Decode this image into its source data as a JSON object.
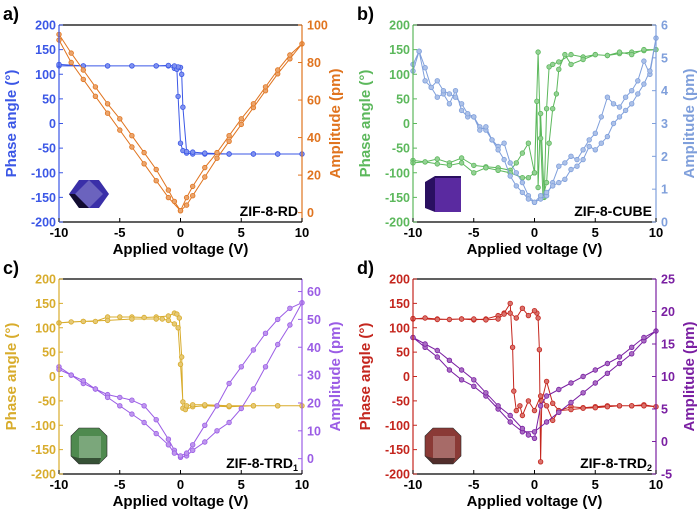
{
  "chart_data": [
    {
      "type": "scatter",
      "panel_label": "a)",
      "sample_label": "ZIF-8-RD",
      "sample_subscript": "",
      "xlabel": "Applied voltage (V)",
      "ylabel_left": "Phase angle (°)",
      "ylabel_right": "Amplitude (pm)",
      "xlim": [
        -10,
        10
      ],
      "ylim_left": [
        -200,
        200
      ],
      "ylim_right": [
        -5,
        100
      ],
      "xticks": [
        -10,
        -5,
        0,
        5,
        10
      ],
      "yticks_left": [
        -200,
        -150,
        -100,
        -50,
        0,
        50,
        100,
        150,
        200
      ],
      "yticks_right": [
        0,
        20,
        40,
        60,
        80,
        100
      ],
      "left_color": "#3b57e6",
      "right_color": "#e0741f",
      "crystal_color": "#3a2fa8",
      "series": [
        {
          "axis": "left",
          "x": [
            -10,
            -8,
            -6,
            -4,
            -2,
            -1,
            -0.5,
            -0.3,
            -0.2,
            0,
            0.2,
            0.5,
            1,
            2,
            4,
            6,
            8,
            10,
            8,
            6,
            4,
            2,
            1,
            0.5,
            0.2,
            0.1,
            0,
            -0.2,
            -0.5,
            -1,
            -2,
            -4,
            -6,
            -8,
            -10
          ],
          "y": [
            117,
            117,
            117,
            117,
            117,
            117,
            112,
            110,
            55,
            -40,
            -55,
            -60,
            -62,
            -62,
            -62,
            -62,
            -62,
            -62,
            -62,
            -62,
            -62,
            -60,
            -58,
            -57,
            33,
            100,
            114,
            115,
            117,
            118,
            117,
            117,
            117,
            117,
            120
          ]
        },
        {
          "axis": "right",
          "x": [
            -10,
            -9,
            -8,
            -7,
            -6,
            -5,
            -4,
            -3,
            -2,
            -1,
            -0.5,
            0,
            0.5,
            1,
            2,
            3,
            4,
            5,
            6,
            7,
            8,
            9,
            10,
            9,
            8,
            7,
            6,
            5,
            4,
            3,
            2,
            1,
            0.5,
            0,
            -1,
            -2,
            -3,
            -4,
            -5,
            -6,
            -7,
            -8,
            -9,
            -10
          ],
          "y": [
            95,
            85,
            76,
            67,
            58,
            50,
            41,
            32,
            23,
            12,
            6,
            1,
            4,
            9,
            19,
            29,
            38,
            47,
            56,
            65,
            74,
            82,
            90,
            84,
            76,
            67,
            58,
            50,
            41,
            32,
            24,
            14,
            8,
            1,
            8,
            17,
            26,
            35,
            44,
            53,
            62,
            71,
            80,
            92
          ]
        }
      ]
    },
    {
      "type": "scatter",
      "panel_label": "b)",
      "sample_label": "ZIF-8-CUBE",
      "sample_subscript": "",
      "xlabel": "Applied voltage (V)",
      "ylabel_left": "Phase angle (°)",
      "ylabel_right": "Amplitude (pm)",
      "xlim": [
        -10,
        10
      ],
      "ylim_left": [
        -200,
        200
      ],
      "ylim_right": [
        0,
        6
      ],
      "xticks": [
        -10,
        -5,
        0,
        5,
        10
      ],
      "yticks_left": [
        -200,
        -150,
        -100,
        -50,
        0,
        50,
        100,
        150,
        200
      ],
      "yticks_right": [
        0,
        1,
        2,
        3,
        4,
        5,
        6
      ],
      "left_color": "#5cb85c",
      "right_color": "#7f9fdb",
      "crystal_color": "#5a2aa0",
      "series": [
        {
          "axis": "left",
          "x": [
            -10,
            -9,
            -8,
            -7,
            -6,
            -5,
            -4,
            -3,
            -2,
            -1.5,
            -1,
            -0.5,
            0,
            0.2,
            0.3,
            0.5,
            0.8,
            1,
            1.2,
            1.5,
            2,
            3,
            4,
            5,
            6,
            7,
            8,
            9,
            10,
            9,
            8,
            7,
            6,
            5,
            4,
            3,
            2.5,
            2,
            1.8,
            1.5,
            1.2,
            1,
            0.7,
            0.5,
            0.3,
            0,
            -0.5,
            -1,
            -2,
            -3,
            -4,
            -5,
            -6,
            -7,
            -8,
            -9,
            -10
          ],
          "y": [
            -75,
            -78,
            -72,
            -80,
            -70,
            -85,
            -88,
            -90,
            -95,
            -80,
            -60,
            -40,
            -100,
            45,
            -130,
            20,
            -150,
            30,
            115,
            120,
            125,
            140,
            135,
            140,
            138,
            142,
            145,
            148,
            150,
            150,
            140,
            145,
            138,
            140,
            130,
            120,
            140,
            110,
            60,
            30,
            -40,
            -120,
            -150,
            -30,
            145,
            -100,
            -110,
            -110,
            -100,
            -95,
            -90,
            -100,
            -80,
            -85,
            -82,
            -78,
            -80
          ]
        },
        {
          "axis": "right",
          "x": [
            -10,
            -9.5,
            -9,
            -8.5,
            -8,
            -7.5,
            -7,
            -6.5,
            -6,
            -5.5,
            -5,
            -4.5,
            -4,
            -3.5,
            -3,
            -2.5,
            -2,
            -1.5,
            -1,
            -0.5,
            0,
            0.5,
            1,
            1.5,
            2,
            2.5,
            3,
            3.5,
            4,
            4.5,
            5,
            5.5,
            6,
            6.5,
            7,
            7.5,
            8,
            8.5,
            9,
            9.5,
            10,
            9.5,
            9,
            8.5,
            8,
            7.5,
            7,
            6.5,
            6,
            5.5,
            5,
            4.5,
            4,
            3.5,
            3,
            2.5,
            2,
            1.5,
            1,
            0.5,
            0,
            -0.5,
            -1,
            -1.5,
            -2,
            -2.5,
            -3,
            -3.5,
            -4,
            -4.5,
            -5,
            -5.5,
            -6,
            -6.5,
            -7,
            -7.5,
            -8,
            -8.5,
            -9,
            -9.5,
            -10
          ],
          "y": [
            4.6,
            5.2,
            4.3,
            4.1,
            3.8,
            3.9,
            3.6,
            4.0,
            3.4,
            3.2,
            3.2,
            2.9,
            2.8,
            2.5,
            2.3,
            2.4,
            1.8,
            1.5,
            1.2,
            0.8,
            0.6,
            0.7,
            0.8,
            1.2,
            1.7,
            1.8,
            2.0,
            1.9,
            2.2,
            2.5,
            2.7,
            3.2,
            3.8,
            3.6,
            3.5,
            3.8,
            4.0,
            4.3,
            4.9,
            4.5,
            5.6,
            4.6,
            4.2,
            3.9,
            3.6,
            3.4,
            3.2,
            3.0,
            2.6,
            2.4,
            2.2,
            2.3,
            1.9,
            1.7,
            1.6,
            1.3,
            1.2,
            1.1,
            0.9,
            0.8,
            0.6,
            0.7,
            0.9,
            1.1,
            1.4,
            1.9,
            2.2,
            2.5,
            2.9,
            2.8,
            3.2,
            3.3,
            3.6,
            3.8,
            3.9,
            4.0,
            4.3,
            4.1,
            4.7,
            5.2,
            4.8
          ]
        }
      ]
    },
    {
      "type": "scatter",
      "panel_label": "c)",
      "sample_label": "ZIF-8-TRD",
      "sample_subscript": "1",
      "xlabel": "Applied voltage (V)",
      "ylabel_left": "Phase angle (°)",
      "ylabel_right": "Amplitude (pm)",
      "xlim": [
        -10,
        10
      ],
      "ylim_left": [
        -200,
        200
      ],
      "ylim_right": [
        -5.5,
        64.5
      ],
      "xticks": [
        -10,
        -5,
        0,
        5,
        10
      ],
      "yticks_left": [
        -200,
        -150,
        -100,
        -50,
        0,
        50,
        100,
        150,
        200
      ],
      "yticks_right": [
        0,
        10,
        20,
        30,
        40,
        50,
        60
      ],
      "left_color": "#d8ac2c",
      "right_color": "#9b5de5",
      "crystal_color": "#4f8a4f",
      "series": [
        {
          "axis": "left",
          "x": [
            -10,
            -9,
            -8,
            -7,
            -6,
            -5,
            -4,
            -3,
            -2,
            -1,
            -0.5,
            -0.3,
            -0.1,
            0.1,
            0.2,
            0.4,
            1,
            2,
            4,
            6,
            8,
            10,
            8,
            6,
            4,
            2,
            1,
            0.5,
            0.2,
            0,
            -0.2,
            -0.5,
            -1,
            -1.5,
            -2,
            -4,
            -6,
            -8,
            -10
          ],
          "y": [
            110,
            112,
            113,
            113,
            122,
            122,
            122,
            121,
            122,
            124,
            130,
            128,
            120,
            40,
            -65,
            -68,
            -62,
            -60,
            -62,
            -60,
            -60,
            -60,
            -60,
            -60,
            -60,
            -58,
            -58,
            -60,
            -52,
            25,
            100,
            108,
            115,
            118,
            118,
            118,
            115,
            113,
            110
          ]
        },
        {
          "axis": "right",
          "x": [
            -10,
            -9,
            -8,
            -7,
            -6,
            -5,
            -4,
            -3,
            -2,
            -1,
            -0.5,
            0,
            0.5,
            1,
            2,
            3,
            4,
            5,
            6,
            7,
            8,
            9,
            10,
            9,
            8,
            7,
            6,
            5,
            4,
            3,
            2,
            1,
            0.5,
            0,
            -0.5,
            -1,
            -2,
            -3,
            -4,
            -5,
            -6,
            -7,
            -8,
            -9,
            -10
          ],
          "y": [
            33,
            30,
            27,
            25,
            23,
            22,
            21,
            19,
            14,
            7,
            3,
            0.5,
            1,
            3,
            6,
            10,
            13,
            18,
            25,
            33,
            41,
            48,
            56,
            54,
            50,
            45,
            39,
            33,
            27,
            19,
            12,
            5,
            2,
            1,
            2,
            5,
            9,
            13,
            16,
            19,
            22,
            25,
            28,
            30,
            32
          ]
        }
      ]
    },
    {
      "type": "scatter",
      "panel_label": "d)",
      "sample_label": "ZIF-8-TRD",
      "sample_subscript": "2",
      "xlabel": "Applied voltage (V)",
      "ylabel_left": "Phase angle (°)",
      "ylabel_right": "Amplitude (pm)",
      "xlim": [
        -10,
        10
      ],
      "ylim_left": [
        -200,
        200
      ],
      "ylim_right": [
        -5,
        25
      ],
      "xticks": [
        -10,
        -5,
        0,
        5,
        10
      ],
      "yticks_left": [
        -200,
        -150,
        -100,
        -50,
        0,
        50,
        100,
        150,
        200
      ],
      "yticks_right": [
        -5,
        0,
        5,
        10,
        15,
        20,
        25
      ],
      "left_color": "#c4261e",
      "right_color": "#7a1fa2",
      "crystal_color": "#8a3a36",
      "series": [
        {
          "axis": "left",
          "x": [
            -10,
            -9,
            -8,
            -7,
            -6,
            -5,
            -4,
            -3,
            -2.5,
            -2,
            -1.8,
            -1.7,
            -1.5,
            -1.2,
            -1,
            -0.5,
            0,
            0.5,
            1,
            1.5,
            2,
            3,
            4,
            5,
            6,
            7,
            8,
            9,
            10,
            9,
            8,
            7,
            6,
            5,
            4,
            3,
            2,
            1.5,
            1,
            0.6,
            0.5,
            0.4,
            0.3,
            0.2,
            0,
            -0.5,
            -1,
            -1.5,
            -2,
            -2.5,
            -3,
            -4,
            -5,
            -6,
            -8,
            -10
          ],
          "y": [
            118,
            120,
            118,
            117,
            118,
            116,
            118,
            125,
            130,
            150,
            60,
            -30,
            -70,
            -60,
            -80,
            -50,
            -70,
            -40,
            -60,
            -90,
            -70,
            -62,
            -64,
            -62,
            -60,
            -60,
            -60,
            -58,
            -62,
            -60,
            -60,
            -60,
            -62,
            -64,
            -65,
            -68,
            -70,
            -55,
            -10,
            -50,
            -175,
            55,
            120,
            130,
            135,
            125,
            140,
            120,
            130,
            128,
            118,
            116,
            118,
            118,
            117,
            119
          ]
        },
        {
          "axis": "right",
          "x": [
            -10,
            -9,
            -8,
            -7,
            -6,
            -5,
            -4,
            -3,
            -2,
            -1,
            0,
            1,
            2,
            3,
            4,
            5,
            6,
            7,
            8,
            9,
            10,
            9,
            8,
            7,
            6,
            5,
            4,
            3,
            2,
            1,
            0.5,
            0,
            -0.5,
            -1,
            -2,
            -3,
            -4,
            -5,
            -6,
            -7,
            -8,
            -9,
            -10
          ],
          "y": [
            16,
            14.5,
            13,
            11,
            9.5,
            8.5,
            7,
            5,
            3,
            1.5,
            1.5,
            3,
            4.5,
            6,
            7.5,
            9,
            10.5,
            12,
            13.5,
            15.5,
            17,
            16,
            14.5,
            13,
            12,
            11,
            10,
            9,
            8,
            7,
            5.5,
            0.5,
            1,
            2,
            4,
            5.5,
            7.5,
            9.5,
            11,
            12.5,
            14,
            15,
            16
          ]
        }
      ]
    }
  ]
}
